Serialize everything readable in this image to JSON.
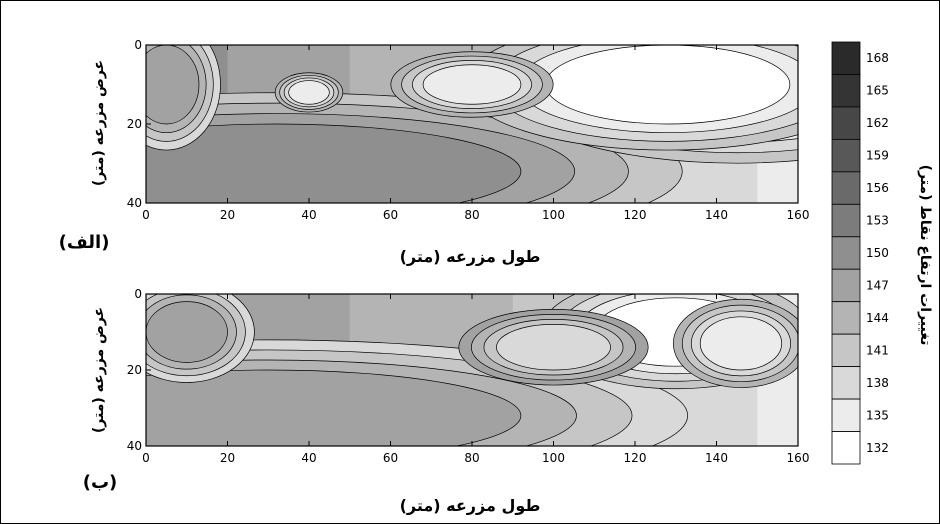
{
  "chart_data": {
    "type": "heatmap",
    "description": "Two contour maps of field elevation (length x width in meters)",
    "zlevels": [
      132,
      135,
      138,
      141,
      144,
      147,
      150,
      153,
      156,
      159,
      162,
      165,
      168
    ],
    "colorbar": {
      "label": "تغییرات ارتفاع نقاط (متر)",
      "ticks": [
        "168",
        "165",
        "162",
        "159",
        "156",
        "153",
        "150",
        "147",
        "144",
        "141",
        "138",
        "135",
        "132"
      ],
      "colors": [
        "#2a2a2a",
        "#343434",
        "#474747",
        "#585858",
        "#6a6a6a",
        "#7c7c7c",
        "#8f8f8f",
        "#a2a2a2",
        "#b4b4b4",
        "#c6c6c6",
        "#d9d9d9",
        "#ececec",
        "#ffffff"
      ]
    },
    "panels": [
      {
        "id": "top",
        "tag": "(الف)",
        "xlabel": "طول مزرعه (متر)",
        "ylabel": "عرض مزرعه (متر)",
        "xlim": [
          0,
          160
        ],
        "ylim": [
          0,
          40
        ],
        "xticks": [
          "0",
          "20",
          "40",
          "60",
          "80",
          "100",
          "120",
          "140",
          "160"
        ],
        "yticks": [
          "0",
          "20",
          "40"
        ],
        "features": [
          {
            "cx": 22,
            "cy": 30,
            "rx": 24,
            "ry": 10,
            "z": 158
          },
          {
            "cx": 42,
            "cy": 31,
            "rx": 45,
            "ry": 11,
            "z": 153
          },
          {
            "cx": 70,
            "cy": 30,
            "rx": 14,
            "ry": 7,
            "z": 153
          },
          {
            "cx": 32,
            "cy": 32,
            "rx": 60,
            "ry": 12,
            "z": 150
          },
          {
            "cx": 145,
            "cy": 10,
            "rx": 35,
            "ry": 12,
            "z": 133
          },
          {
            "cx": 128,
            "cy": 10,
            "rx": 30,
            "ry": 10,
            "z": 134
          },
          {
            "cx": 80,
            "cy": 10,
            "rx": 12,
            "ry": 5,
            "z": 136
          },
          {
            "cx": 40,
            "cy": 12,
            "rx": 5,
            "ry": 3,
            "z": 136
          },
          {
            "cx": 5,
            "cy": 10,
            "rx": 8,
            "ry": 10,
            "z": 149
          }
        ]
      },
      {
        "id": "bottom",
        "tag": "(ب)",
        "xlabel": "طول مزرعه (متر)",
        "ylabel": "عرض مزرعه (متر)",
        "xlim": [
          0,
          160
        ],
        "ylim": [
          0,
          40
        ],
        "xticks": [
          "0",
          "20",
          "40",
          "60",
          "80",
          "100",
          "120",
          "140",
          "160"
        ],
        "yticks": [
          "0",
          "20",
          "40"
        ],
        "features": [
          {
            "cx": 25,
            "cy": 31,
            "rx": 22,
            "ry": 9,
            "z": 157
          },
          {
            "cx": 42,
            "cy": 32,
            "rx": 48,
            "ry": 10,
            "z": 152
          },
          {
            "cx": 70,
            "cy": 30,
            "rx": 12,
            "ry": 6,
            "z": 151
          },
          {
            "cx": 30,
            "cy": 32,
            "rx": 62,
            "ry": 12,
            "z": 149
          },
          {
            "cx": 130,
            "cy": 10,
            "rx": 20,
            "ry": 9,
            "z": 134
          },
          {
            "cx": 146,
            "cy": 13,
            "rx": 10,
            "ry": 7,
            "z": 135
          },
          {
            "cx": 100,
            "cy": 14,
            "rx": 14,
            "ry": 6,
            "z": 139
          },
          {
            "cx": 10,
            "cy": 10,
            "rx": 10,
            "ry": 8,
            "z": 148
          }
        ]
      }
    ]
  }
}
